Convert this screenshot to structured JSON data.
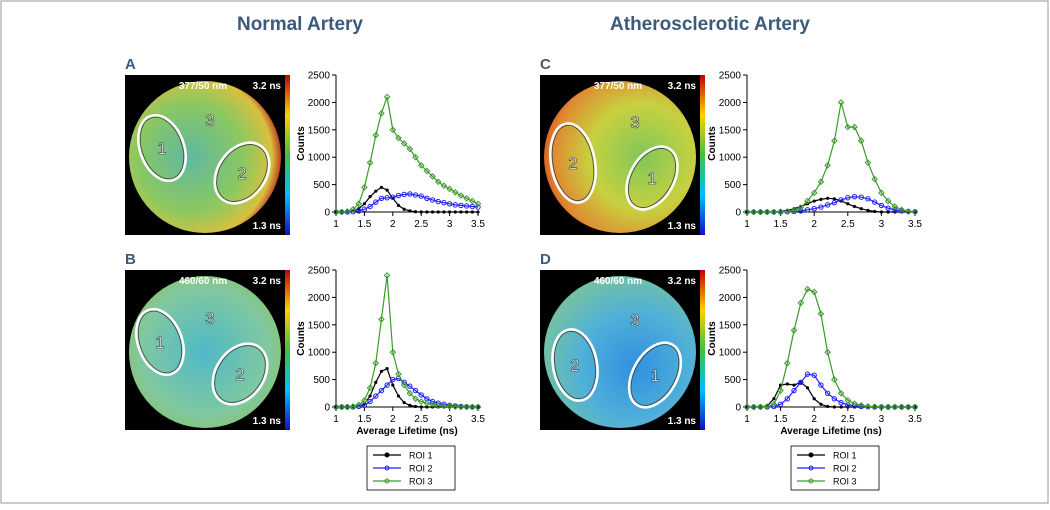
{
  "figure": {
    "column_titles": [
      "Normal Artery",
      "Atherosclerotic Artery"
    ],
    "panels": [
      {
        "letter": "A",
        "filter": "377/50 nm",
        "max": "3.2 ns",
        "min": "1.3 ns",
        "rois": [
          "1",
          "3",
          "2"
        ]
      },
      {
        "letter": "B",
        "filter": "460/60 nm",
        "max": "3.2 ns",
        "min": "1.3 ns",
        "rois": [
          "1",
          "3",
          "2"
        ]
      },
      {
        "letter": "C",
        "filter": "377/50 nm",
        "max": "3.2 ns",
        "min": "1.3 ns",
        "rois": [
          "2",
          "3",
          "1"
        ]
      },
      {
        "letter": "D",
        "filter": "460/60 nm",
        "max": "3.2 ns",
        "min": "1.3 ns",
        "rois": [
          "2",
          "3",
          "1"
        ]
      }
    ]
  },
  "chart_data": [
    {
      "type": "line",
      "y_label": "Counts",
      "xlim": [
        1,
        3.5
      ],
      "xticks": [
        1,
        1.5,
        2,
        2.5,
        3,
        3.5
      ],
      "ylim": [
        0,
        2500
      ],
      "yticks": [
        0,
        500,
        1000,
        1500,
        2000,
        2500
      ],
      "x": [
        1.0,
        1.1,
        1.2,
        1.3,
        1.4,
        1.5,
        1.6,
        1.7,
        1.8,
        1.9,
        2.0,
        2.1,
        2.2,
        2.3,
        2.4,
        2.5,
        2.6,
        2.7,
        2.8,
        2.9,
        3.0,
        3.1,
        3.2,
        3.3,
        3.4,
        3.5
      ],
      "series": [
        {
          "name": "ROI 1",
          "color": "#000000",
          "values": [
            0,
            0,
            5,
            20,
            60,
            150,
            280,
            380,
            450,
            400,
            250,
            120,
            50,
            20,
            5,
            0,
            0,
            0,
            0,
            0,
            0,
            0,
            0,
            0,
            0,
            0
          ]
        },
        {
          "name": "ROI 2",
          "color": "#2020ff",
          "values": [
            0,
            0,
            0,
            5,
            20,
            50,
            100,
            180,
            250,
            260,
            270,
            300,
            320,
            330,
            310,
            290,
            250,
            220,
            190,
            170,
            150,
            130,
            120,
            110,
            100,
            90
          ]
        },
        {
          "name": "ROI 3",
          "color": "#3a9a2a",
          "values": [
            0,
            0,
            10,
            50,
            150,
            450,
            900,
            1400,
            1800,
            2100,
            1500,
            1350,
            1250,
            1150,
            1000,
            850,
            750,
            650,
            550,
            480,
            420,
            360,
            300,
            250,
            200,
            150
          ]
        }
      ]
    },
    {
      "type": "line",
      "x_label": "Average Lifetime (ns)",
      "y_label": "Counts",
      "legend": "below",
      "xlim": [
        1,
        3.5
      ],
      "xticks": [
        1,
        1.5,
        2,
        2.5,
        3,
        3.5
      ],
      "ylim": [
        0,
        2500
      ],
      "yticks": [
        0,
        500,
        1000,
        1500,
        2000,
        2500
      ],
      "x": [
        1.0,
        1.1,
        1.2,
        1.3,
        1.4,
        1.5,
        1.6,
        1.7,
        1.8,
        1.9,
        2.0,
        2.1,
        2.2,
        2.3,
        2.4,
        2.5,
        2.6,
        2.7,
        2.8,
        2.9,
        3.0,
        3.1,
        3.2,
        3.3,
        3.4,
        3.5
      ],
      "series": [
        {
          "name": "ROI 1",
          "color": "#000000",
          "values": [
            0,
            0,
            0,
            5,
            20,
            60,
            200,
            450,
            650,
            700,
            400,
            200,
            80,
            30,
            10,
            0,
            0,
            0,
            0,
            0,
            0,
            0,
            0,
            0,
            0,
            0
          ]
        },
        {
          "name": "ROI 2",
          "color": "#2020ff",
          "values": [
            0,
            0,
            0,
            0,
            10,
            30,
            100,
            200,
            300,
            400,
            500,
            520,
            450,
            380,
            300,
            220,
            150,
            100,
            70,
            50,
            30,
            20,
            10,
            5,
            0,
            0
          ]
        },
        {
          "name": "ROI 3",
          "color": "#3a9a2a",
          "values": [
            0,
            0,
            0,
            10,
            40,
            120,
            350,
            800,
            1600,
            2400,
            1000,
            600,
            400,
            250,
            150,
            100,
            70,
            50,
            30,
            20,
            10,
            5,
            0,
            0,
            0,
            0
          ]
        }
      ]
    },
    {
      "type": "line",
      "y_label": "Counts",
      "xlim": [
        1,
        3.5
      ],
      "xticks": [
        1,
        1.5,
        2,
        2.5,
        3,
        3.5
      ],
      "ylim": [
        0,
        2500
      ],
      "yticks": [
        0,
        500,
        1000,
        1500,
        2000,
        2500
      ],
      "x": [
        1.0,
        1.1,
        1.2,
        1.3,
        1.4,
        1.5,
        1.6,
        1.7,
        1.8,
        1.9,
        2.0,
        2.1,
        2.2,
        2.3,
        2.4,
        2.5,
        2.6,
        2.7,
        2.8,
        2.9,
        3.0,
        3.1,
        3.2,
        3.3,
        3.4,
        3.5
      ],
      "series": [
        {
          "name": "ROI 1",
          "color": "#000000",
          "values": [
            0,
            0,
            0,
            0,
            0,
            10,
            30,
            60,
            100,
            150,
            200,
            230,
            250,
            240,
            200,
            150,
            100,
            60,
            30,
            10,
            0,
            0,
            0,
            0,
            0,
            0
          ]
        },
        {
          "name": "ROI 2",
          "color": "#2020ff",
          "values": [
            0,
            0,
            0,
            0,
            0,
            0,
            5,
            10,
            20,
            40,
            60,
            90,
            130,
            170,
            220,
            260,
            280,
            270,
            240,
            180,
            120,
            70,
            40,
            20,
            10,
            5
          ]
        },
        {
          "name": "ROI 3",
          "color": "#3a9a2a",
          "values": [
            0,
            0,
            0,
            0,
            0,
            5,
            10,
            30,
            80,
            200,
            350,
            550,
            850,
            1300,
            2000,
            1550,
            1550,
            1300,
            900,
            600,
            350,
            200,
            100,
            40,
            10,
            0
          ]
        }
      ]
    },
    {
      "type": "line",
      "x_label": "Average Lifetime (ns)",
      "y_label": "Counts",
      "legend": "below",
      "xlim": [
        1,
        3.5
      ],
      "xticks": [
        1,
        1.5,
        2,
        2.5,
        3,
        3.5
      ],
      "ylim": [
        0,
        2500
      ],
      "yticks": [
        0,
        500,
        1000,
        1500,
        2000,
        2500
      ],
      "x": [
        1.0,
        1.1,
        1.2,
        1.3,
        1.4,
        1.5,
        1.6,
        1.7,
        1.8,
        1.9,
        2.0,
        2.1,
        2.2,
        2.3,
        2.4,
        2.5,
        2.6,
        2.7,
        2.8,
        2.9,
        3.0,
        3.1,
        3.2,
        3.3,
        3.4,
        3.5
      ],
      "series": [
        {
          "name": "ROI 1",
          "color": "#000000",
          "values": [
            0,
            0,
            0,
            20,
            150,
            400,
            420,
            400,
            450,
            350,
            150,
            50,
            10,
            0,
            0,
            0,
            0,
            0,
            0,
            0,
            0,
            0,
            0,
            0,
            0,
            0
          ]
        },
        {
          "name": "ROI 2",
          "color": "#2020ff",
          "values": [
            0,
            0,
            0,
            0,
            10,
            50,
            150,
            300,
            450,
            600,
            580,
            400,
            250,
            150,
            80,
            40,
            20,
            10,
            5,
            0,
            0,
            0,
            0,
            0,
            0,
            0
          ]
        },
        {
          "name": "ROI 3",
          "color": "#3a9a2a",
          "values": [
            0,
            0,
            0,
            10,
            50,
            300,
            800,
            1400,
            1900,
            2150,
            2100,
            1700,
            1000,
            500,
            250,
            120,
            60,
            30,
            10,
            5,
            0,
            0,
            0,
            0,
            0,
            0
          ]
        }
      ]
    }
  ]
}
